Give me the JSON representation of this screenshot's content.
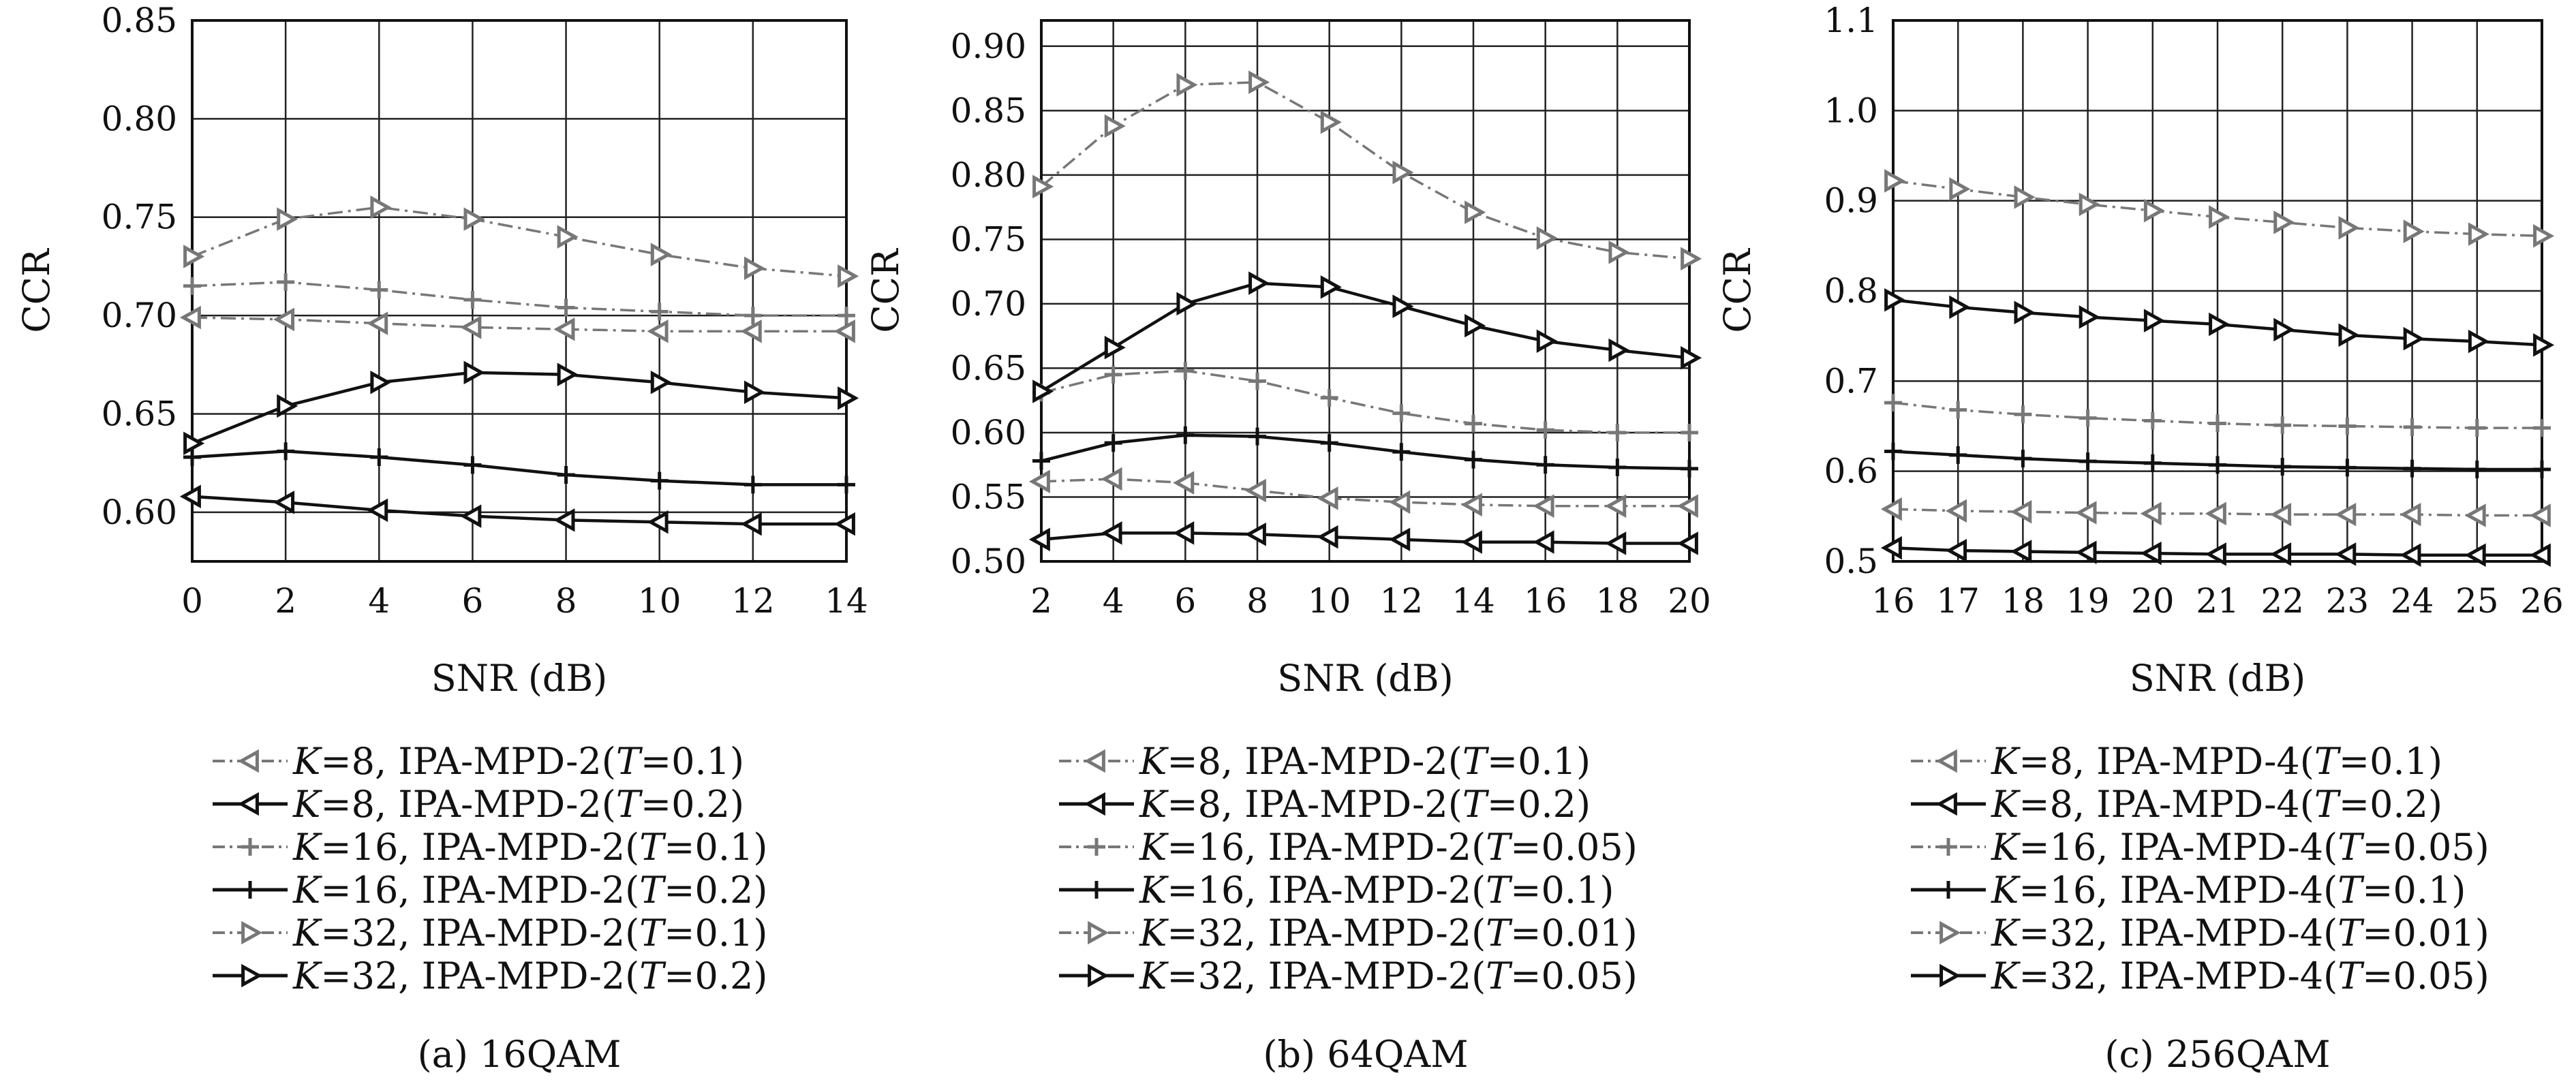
{
  "chart_data": [
    {
      "type": "line",
      "caption": "(a) 16QAM",
      "xlabel": "SNR (dB)",
      "ylabel": "CCR",
      "xlim": [
        0,
        14
      ],
      "ylim": [
        0.575,
        0.85
      ],
      "xticks": [
        "0",
        "2",
        "4",
        "6",
        "8",
        "10",
        "12",
        "14"
      ],
      "yticks": [
        "0.60",
        "0.65",
        "0.70",
        "0.75",
        "0.80",
        "0.85"
      ],
      "grid": true,
      "legend_position": "below",
      "x": [
        0,
        2,
        4,
        6,
        8,
        10,
        12,
        14
      ],
      "series": [
        {
          "name": "K=8, IPA-MPD-2(T=0.1)",
          "k": "8",
          "method": "IPA-MPD-2",
          "t": "0.1",
          "marker": "triangle-left",
          "color": "#777777",
          "dashed": true,
          "values": [
            0.699,
            0.698,
            0.696,
            0.694,
            0.693,
            0.692,
            0.692,
            0.692
          ]
        },
        {
          "name": "K=8, IPA-MPD-2(T=0.2)",
          "k": "8",
          "method": "IPA-MPD-2",
          "t": "0.2",
          "marker": "triangle-left",
          "color": "#111111",
          "dashed": false,
          "values": [
            0.608,
            0.605,
            0.601,
            0.598,
            0.596,
            0.595,
            0.594,
            0.594
          ]
        },
        {
          "name": "K=16, IPA-MPD-2(T=0.1)",
          "k": "16",
          "method": "IPA-MPD-2",
          "t": "0.1",
          "marker": "plus",
          "color": "#777777",
          "dashed": true,
          "values": [
            0.715,
            0.717,
            0.713,
            0.708,
            0.704,
            0.702,
            0.7,
            0.7
          ]
        },
        {
          "name": "K=16, IPA-MPD-2(T=0.2)",
          "k": "16",
          "method": "IPA-MPD-2",
          "t": "0.2",
          "marker": "plus",
          "color": "#111111",
          "dashed": false,
          "values": [
            0.628,
            0.631,
            0.628,
            0.624,
            0.619,
            0.616,
            0.614,
            0.614
          ]
        },
        {
          "name": "K=32, IPA-MPD-2(T=0.1)",
          "k": "32",
          "method": "IPA-MPD-2",
          "t": "0.1",
          "marker": "triangle-right",
          "color": "#777777",
          "dashed": true,
          "values": [
            0.73,
            0.749,
            0.755,
            0.749,
            0.74,
            0.731,
            0.724,
            0.72
          ]
        },
        {
          "name": "K=32, IPA-MPD-2(T=0.2)",
          "k": "32",
          "method": "IPA-MPD-2",
          "t": "0.2",
          "marker": "triangle-right",
          "color": "#111111",
          "dashed": false,
          "values": [
            0.635,
            0.654,
            0.666,
            0.671,
            0.67,
            0.666,
            0.661,
            0.658
          ]
        }
      ]
    },
    {
      "type": "line",
      "caption": "(b) 64QAM",
      "xlabel": "SNR (dB)",
      "ylabel": "CCR",
      "xlim": [
        2,
        20
      ],
      "ylim": [
        0.5,
        0.92
      ],
      "xticks": [
        "2",
        "4",
        "6",
        "8",
        "10",
        "12",
        "14",
        "16",
        "18",
        "20"
      ],
      "yticks": [
        "0.50",
        "0.55",
        "0.60",
        "0.65",
        "0.70",
        "0.75",
        "0.80",
        "0.85",
        "0.90"
      ],
      "grid": true,
      "legend_position": "below",
      "x": [
        2,
        4,
        6,
        8,
        10,
        12,
        14,
        16,
        18,
        20
      ],
      "series": [
        {
          "name": "K=8, IPA-MPD-2(T=0.1)",
          "k": "8",
          "method": "IPA-MPD-2",
          "t": "0.1",
          "marker": "triangle-left",
          "color": "#777777",
          "dashed": true,
          "values": [
            0.562,
            0.564,
            0.561,
            0.555,
            0.549,
            0.546,
            0.544,
            0.543,
            0.543,
            0.543
          ]
        },
        {
          "name": "K=8, IPA-MPD-2(T=0.2)",
          "k": "8",
          "method": "IPA-MPD-2",
          "t": "0.2",
          "marker": "triangle-left",
          "color": "#111111",
          "dashed": false,
          "values": [
            0.517,
            0.522,
            0.522,
            0.521,
            0.519,
            0.517,
            0.515,
            0.515,
            0.514,
            0.514
          ]
        },
        {
          "name": "K=16, IPA-MPD-2(T=0.05)",
          "k": "16",
          "method": "IPA-MPD-2",
          "t": "0.05",
          "marker": "plus",
          "color": "#777777",
          "dashed": true,
          "values": [
            0.631,
            0.645,
            0.648,
            0.64,
            0.627,
            0.615,
            0.607,
            0.602,
            0.6,
            0.6
          ]
        },
        {
          "name": "K=16, IPA-MPD-2(T=0.1)",
          "k": "16",
          "method": "IPA-MPD-2",
          "t": "0.1",
          "marker": "plus",
          "color": "#111111",
          "dashed": false,
          "values": [
            0.578,
            0.592,
            0.598,
            0.597,
            0.592,
            0.585,
            0.579,
            0.575,
            0.573,
            0.572
          ]
        },
        {
          "name": "K=32, IPA-MPD-2(T=0.01)",
          "k": "32",
          "method": "IPA-MPD-2",
          "t": "0.01",
          "marker": "triangle-right",
          "color": "#777777",
          "dashed": true,
          "values": [
            0.791,
            0.838,
            0.87,
            0.872,
            0.841,
            0.802,
            0.771,
            0.751,
            0.74,
            0.735
          ]
        },
        {
          "name": "K=32, IPA-MPD-2(T=0.05)",
          "k": "32",
          "method": "IPA-MPD-2",
          "t": "0.05",
          "marker": "triangle-right",
          "color": "#111111",
          "dashed": false,
          "values": [
            0.632,
            0.666,
            0.7,
            0.716,
            0.713,
            0.698,
            0.683,
            0.671,
            0.664,
            0.658
          ]
        }
      ]
    },
    {
      "type": "line",
      "caption": "(c) 256QAM",
      "xlabel": "SNR (dB)",
      "ylabel": "CCR",
      "xlim": [
        16,
        26
      ],
      "ylim": [
        0.5,
        1.1
      ],
      "xticks": [
        "16",
        "17",
        "18",
        "19",
        "20",
        "21",
        "22",
        "23",
        "24",
        "25",
        "26"
      ],
      "yticks": [
        "0.5",
        "0.6",
        "0.7",
        "0.8",
        "0.9",
        "1.0",
        "1.1"
      ],
      "grid": true,
      "legend_position": "below",
      "x": [
        16,
        17,
        18,
        19,
        20,
        21,
        22,
        23,
        24,
        25,
        26
      ],
      "series": [
        {
          "name": "K=8, IPA-MPD-4(T=0.1)",
          "k": "8",
          "method": "IPA-MPD-4",
          "t": "0.1",
          "marker": "triangle-left",
          "color": "#777777",
          "dashed": true,
          "values": [
            0.558,
            0.556,
            0.555,
            0.554,
            0.553,
            0.553,
            0.552,
            0.552,
            0.552,
            0.551,
            0.551
          ]
        },
        {
          "name": "K=8, IPA-MPD-4(T=0.2)",
          "k": "8",
          "method": "IPA-MPD-4",
          "t": "0.2",
          "marker": "triangle-left",
          "color": "#111111",
          "dashed": false,
          "values": [
            0.515,
            0.512,
            0.511,
            0.51,
            0.509,
            0.508,
            0.508,
            0.508,
            0.507,
            0.507,
            0.507
          ]
        },
        {
          "name": "K=16, IPA-MPD-4(T=0.05)",
          "k": "16",
          "method": "IPA-MPD-4",
          "t": "0.05",
          "marker": "plus",
          "color": "#777777",
          "dashed": true,
          "values": [
            0.676,
            0.668,
            0.663,
            0.659,
            0.656,
            0.653,
            0.651,
            0.65,
            0.649,
            0.648,
            0.648
          ]
        },
        {
          "name": "K=16, IPA-MPD-4(T=0.1)",
          "k": "16",
          "method": "IPA-MPD-4",
          "t": "0.1",
          "marker": "plus",
          "color": "#111111",
          "dashed": false,
          "values": [
            0.622,
            0.618,
            0.614,
            0.611,
            0.609,
            0.607,
            0.605,
            0.604,
            0.603,
            0.602,
            0.602
          ]
        },
        {
          "name": "K=32, IPA-MPD-4(T=0.01)",
          "k": "32",
          "method": "IPA-MPD-4",
          "t": "0.01",
          "marker": "triangle-right",
          "color": "#777777",
          "dashed": true,
          "values": [
            0.922,
            0.913,
            0.904,
            0.896,
            0.889,
            0.882,
            0.876,
            0.87,
            0.866,
            0.863,
            0.861
          ]
        },
        {
          "name": "K=32, IPA-MPD-4(T=0.05)",
          "k": "32",
          "method": "IPA-MPD-4",
          "t": "0.05",
          "marker": "triangle-right",
          "color": "#111111",
          "dashed": false,
          "values": [
            0.79,
            0.782,
            0.776,
            0.771,
            0.767,
            0.763,
            0.757,
            0.751,
            0.747,
            0.744,
            0.74
          ]
        }
      ]
    }
  ]
}
